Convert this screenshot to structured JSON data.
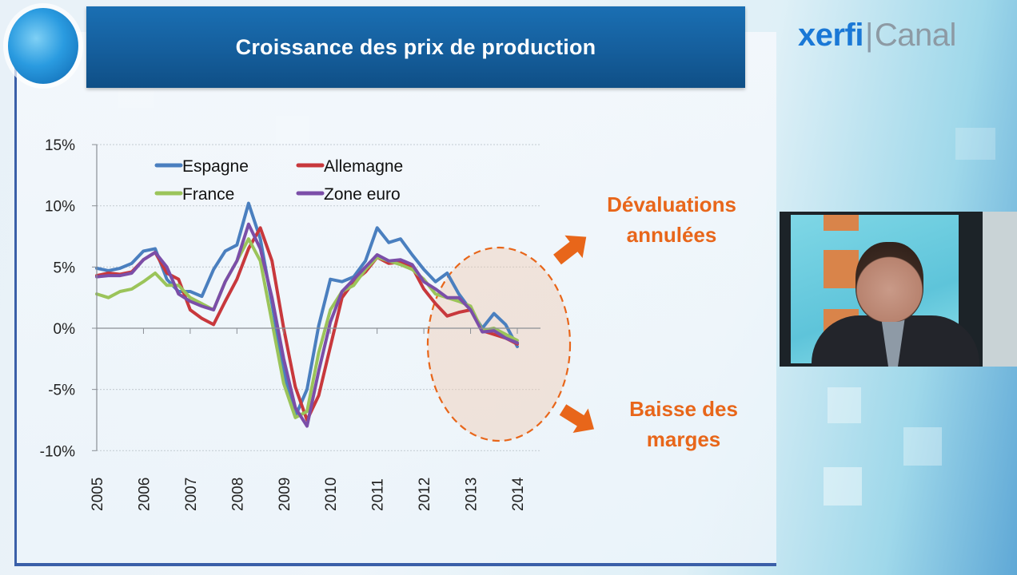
{
  "header": {
    "title": "Croissance des prix de production",
    "brand": {
      "primary": "xerfi",
      "separator": "|",
      "secondary": "Canal"
    }
  },
  "annotations": {
    "top": {
      "line1": "Dévaluations",
      "line2": "annulées"
    },
    "bottom": {
      "line1": "Baisse des",
      "line2": "marges"
    },
    "accent_color": "#e8661a"
  },
  "video_inset": {
    "description": "presenter webcam feed"
  },
  "chart_data": {
    "type": "line",
    "title": "Croissance des prix de production",
    "xlabel": "",
    "ylabel": "",
    "ylim": [
      -10,
      15
    ],
    "xlim": [
      2005,
      2014.1
    ],
    "y_ticks": [
      "15%",
      "10%",
      "5%",
      "0%",
      "-5%",
      "-10%"
    ],
    "y_tick_values": [
      15,
      10,
      5,
      0,
      -5,
      -10
    ],
    "x_ticks": [
      "2005",
      "2006",
      "2007",
      "2008",
      "2009",
      "2010",
      "2011",
      "2012",
      "2013",
      "2014"
    ],
    "grid": "horizontal dotted",
    "legend_position": "top-left inside, 2 columns",
    "highlight": {
      "shape": "dashed ellipse",
      "x_range": [
        2012.1,
        2014.3
      ],
      "y_range": [
        -9,
        6.5
      ],
      "color": "#e8661a"
    },
    "x": [
      2005.0,
      2005.25,
      2005.5,
      2005.75,
      2006.0,
      2006.25,
      2006.5,
      2006.75,
      2007.0,
      2007.25,
      2007.5,
      2007.75,
      2008.0,
      2008.25,
      2008.5,
      2008.75,
      2009.0,
      2009.25,
      2009.5,
      2009.75,
      2010.0,
      2010.25,
      2010.5,
      2010.75,
      2011.0,
      2011.25,
      2011.5,
      2011.75,
      2012.0,
      2012.25,
      2012.5,
      2012.75,
      2013.0,
      2013.25,
      2013.5,
      2013.75,
      2014.0
    ],
    "series": [
      {
        "name": "Espagne",
        "color": "#4a7fbf",
        "values": [
          4.9,
          4.7,
          4.9,
          5.3,
          6.3,
          6.5,
          4.0,
          3.0,
          3.0,
          2.6,
          4.8,
          6.3,
          6.8,
          10.2,
          7.3,
          2.0,
          -3.5,
          -7.2,
          -5.0,
          0.2,
          4.0,
          3.8,
          4.2,
          5.5,
          8.2,
          7.0,
          7.3,
          6.0,
          4.8,
          3.8,
          4.5,
          2.8,
          1.5,
          0.0,
          1.2,
          0.3,
          -1.5
        ]
      },
      {
        "name": "Allemagne",
        "color": "#c8383c",
        "values": [
          4.3,
          4.5,
          4.4,
          4.6,
          5.6,
          6.2,
          4.5,
          4.0,
          1.5,
          0.8,
          0.3,
          2.2,
          4.0,
          6.5,
          8.2,
          5.5,
          0.0,
          -4.8,
          -7.5,
          -5.5,
          -1.5,
          2.5,
          3.8,
          4.6,
          5.8,
          5.3,
          5.4,
          5.0,
          3.2,
          2.0,
          1.0,
          1.3,
          1.5,
          -0.2,
          -0.5,
          -0.8,
          -1.3
        ]
      },
      {
        "name": "France",
        "color": "#9bc45a",
        "values": [
          2.8,
          2.5,
          3.0,
          3.2,
          3.8,
          4.5,
          3.5,
          3.5,
          2.5,
          2.0,
          1.5,
          3.8,
          5.5,
          7.3,
          5.5,
          0.5,
          -4.5,
          -7.3,
          -6.8,
          -2.0,
          1.5,
          3.0,
          3.5,
          4.8,
          5.8,
          5.5,
          5.2,
          4.8,
          4.0,
          2.8,
          2.5,
          2.2,
          1.8,
          -0.2,
          0.0,
          -0.5,
          -1.0
        ]
      },
      {
        "name": "Zone euro",
        "color": "#7b4ea8",
        "values": [
          4.2,
          4.3,
          4.3,
          4.5,
          5.6,
          6.2,
          5.0,
          2.8,
          2.2,
          1.8,
          1.5,
          3.8,
          5.5,
          8.5,
          6.5,
          2.5,
          -2.5,
          -6.5,
          -8.0,
          -3.5,
          0.5,
          3.0,
          4.0,
          5.0,
          6.0,
          5.5,
          5.6,
          5.2,
          3.8,
          3.2,
          2.5,
          2.5,
          1.5,
          -0.3,
          -0.2,
          -0.8,
          -1.2
        ]
      }
    ]
  }
}
